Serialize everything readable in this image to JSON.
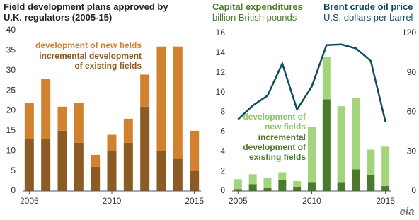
{
  "chart_data": [
    {
      "type": "bar",
      "title": "Field development plans approved by U.K. regulators (2005-15)",
      "x": [
        2005,
        2006,
        2007,
        2008,
        2009,
        2010,
        2011,
        2012,
        2013,
        2014,
        2015
      ],
      "series": [
        {
          "name": "incremental development of existing fields",
          "color": "#8c5a23",
          "values": [
            13,
            13,
            15,
            12,
            6,
            10,
            12,
            21,
            10,
            8,
            5
          ]
        },
        {
          "name": "development of new fields",
          "color": "#d2822e",
          "values": [
            9,
            15,
            6,
            10,
            3,
            4,
            6,
            8,
            26,
            28,
            10
          ]
        }
      ],
      "stacked": true,
      "xlim": [
        2004.6,
        2015.4
      ],
      "xticks": [
        2005,
        2010,
        2015
      ],
      "ylim": [
        0,
        40
      ],
      "yticks": [
        0,
        5,
        10,
        15,
        20,
        25,
        30,
        35,
        40
      ],
      "grid": false
    },
    {
      "type": "bar",
      "title": "Capital expenditures",
      "subtitle": "billion British pounds",
      "y2_title": "Brent crude oil price",
      "y2_subtitle": "U.S. dollars per barrel",
      "x": [
        2005,
        2006,
        2007,
        2008,
        2009,
        2010,
        2011,
        2012,
        2013,
        2014,
        2015
      ],
      "series": [
        {
          "name": "incremental development of existing fields",
          "color": "#4c7a2c",
          "values": [
            0.2,
            0.7,
            0.3,
            1.1,
            0.4,
            0.9,
            9.3,
            0.9,
            2.2,
            1.6,
            0.5
          ]
        },
        {
          "name": "development of new fields",
          "color": "#a4d57c",
          "values": [
            1.0,
            1.0,
            1.0,
            0.8,
            0.6,
            5.6,
            4.3,
            7.7,
            7.2,
            2.6,
            4.0
          ]
        },
        {
          "type": "line",
          "axis": "y2",
          "color": "#0f4a5e",
          "values": [
            54.5,
            65,
            72.5,
            97,
            62,
            79.5,
            111,
            111.5,
            108.5,
            99,
            52.5
          ]
        }
      ],
      "stacked": true,
      "xlim": [
        2004.6,
        2015.4
      ],
      "xticks": [
        2005,
        2010,
        2015
      ],
      "ylim": [
        0,
        16
      ],
      "yticks": [
        0,
        2,
        4,
        6,
        8,
        10,
        12,
        14,
        16
      ],
      "y2lim": [
        0,
        120
      ],
      "y2ticks": [
        0,
        30,
        60,
        90,
        120
      ],
      "grid": false
    }
  ],
  "logo": "eia"
}
